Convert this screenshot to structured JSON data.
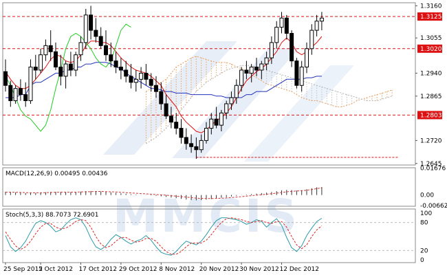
{
  "chart_data": {
    "type": "candlestick",
    "panels": [
      {
        "id": "price",
        "ylim": [
          1.264,
          1.317
        ],
        "price_labels": [
          "1.3160",
          "1.3055",
          "1.2940",
          "1.2865",
          "1.2720",
          "1.2645"
        ],
        "price_values": [
          1.316,
          1.3055,
          1.294,
          1.2865,
          1.272,
          1.2645
        ],
        "levels": [
          {
            "value": 1.3125,
            "label": "1.3125",
            "color": "#dd1111"
          },
          {
            "value": 1.302,
            "label": "1.3020",
            "color": "#dd1111"
          },
          {
            "value": 1.2803,
            "label": "1.2803",
            "color": "#dd1111"
          }
        ],
        "candles": [
          [
            1.2945,
            1.2985,
            1.288,
            1.29
          ],
          [
            1.29,
            1.2915,
            1.283,
            1.285
          ],
          [
            1.285,
            1.29,
            1.284,
            1.289
          ],
          [
            1.289,
            1.292,
            1.285,
            1.287
          ],
          [
            1.287,
            1.291,
            1.283,
            1.285
          ],
          [
            1.285,
            1.2985,
            1.284,
            1.296
          ],
          [
            1.296,
            1.3,
            1.292,
            1.295
          ],
          [
            1.295,
            1.302,
            1.294,
            1.3
          ],
          [
            1.3,
            1.305,
            1.298,
            1.303
          ],
          [
            1.303,
            1.308,
            1.298,
            1.301
          ],
          [
            1.301,
            1.304,
            1.295,
            1.296
          ],
          [
            1.296,
            1.3,
            1.29,
            1.293
          ],
          [
            1.293,
            1.298,
            1.289,
            1.297
          ],
          [
            1.297,
            1.301,
            1.293,
            1.295
          ],
          [
            1.295,
            1.301,
            1.293,
            1.3
          ],
          [
            1.3,
            1.306,
            1.298,
            1.304
          ],
          [
            1.304,
            1.315,
            1.302,
            1.313
          ],
          [
            1.313,
            1.316,
            1.305,
            1.308
          ],
          [
            1.308,
            1.312,
            1.304,
            1.306
          ],
          [
            1.306,
            1.309,
            1.302,
            1.303
          ],
          [
            1.303,
            1.308,
            1.298,
            1.3
          ],
          [
            1.3,
            1.304,
            1.296,
            1.298
          ],
          [
            1.298,
            1.301,
            1.294,
            1.296
          ],
          [
            1.296,
            1.299,
            1.292,
            1.295
          ],
          [
            1.295,
            1.298,
            1.291,
            1.293
          ],
          [
            1.293,
            1.297,
            1.289,
            1.291
          ],
          [
            1.291,
            1.295,
            1.288,
            1.292
          ],
          [
            1.292,
            1.296,
            1.289,
            1.294
          ],
          [
            1.294,
            1.297,
            1.29,
            1.292
          ],
          [
            1.292,
            1.294,
            1.288,
            1.29
          ],
          [
            1.29,
            1.293,
            1.286,
            1.288
          ],
          [
            1.288,
            1.291,
            1.282,
            1.284
          ],
          [
            1.284,
            1.287,
            1.279,
            1.28
          ],
          [
            1.28,
            1.283,
            1.276,
            1.278
          ],
          [
            1.278,
            1.281,
            1.274,
            1.276
          ],
          [
            1.276,
            1.279,
            1.271,
            1.273
          ],
          [
            1.273,
            1.276,
            1.269,
            1.271
          ],
          [
            1.271,
            1.274,
            1.268,
            1.27
          ],
          [
            1.27,
            1.273,
            1.266,
            1.269
          ],
          [
            1.269,
            1.274,
            1.268,
            1.272
          ],
          [
            1.272,
            1.278,
            1.271,
            1.276
          ],
          [
            1.276,
            1.281,
            1.274,
            1.279
          ],
          [
            1.279,
            1.283,
            1.276,
            1.277
          ],
          [
            1.277,
            1.282,
            1.275,
            1.281
          ],
          [
            1.281,
            1.285,
            1.279,
            1.284
          ],
          [
            1.284,
            1.288,
            1.282,
            1.286
          ],
          [
            1.286,
            1.292,
            1.284,
            1.29
          ],
          [
            1.29,
            1.296,
            1.288,
            1.295
          ],
          [
            1.295,
            1.298,
            1.292,
            1.294
          ],
          [
            1.294,
            1.297,
            1.291,
            1.296
          ],
          [
            1.296,
            1.299,
            1.293,
            1.295
          ],
          [
            1.295,
            1.298,
            1.292,
            1.297
          ],
          [
            1.297,
            1.301,
            1.295,
            1.299
          ],
          [
            1.299,
            1.306,
            1.297,
            1.304
          ],
          [
            1.304,
            1.311,
            1.302,
            1.309
          ],
          [
            1.309,
            1.314,
            1.307,
            1.312
          ],
          [
            1.312,
            1.313,
            1.305,
            1.307
          ],
          [
            1.307,
            1.308,
            1.296,
            1.298
          ],
          [
            1.298,
            1.299,
            1.289,
            1.29
          ],
          [
            1.29,
            1.298,
            1.288,
            1.296
          ],
          [
            1.296,
            1.304,
            1.294,
            1.302
          ],
          [
            1.302,
            1.31,
            1.3,
            1.308
          ],
          [
            1.308,
            1.313,
            1.306,
            1.311
          ],
          [
            1.311,
            1.314,
            1.308,
            1.312
          ]
        ],
        "tenkan": [
          1.2945,
          1.292,
          1.29,
          1.289,
          1.289,
          1.29,
          1.292,
          1.294,
          1.296,
          1.2985,
          1.3,
          1.2995,
          1.298,
          1.2975,
          1.298,
          1.3,
          1.303,
          1.3045,
          1.3045,
          1.304,
          1.304,
          1.303,
          1.301,
          1.299,
          1.2975,
          1.296,
          1.295,
          1.2945,
          1.294,
          1.293,
          1.2915,
          1.29,
          1.287,
          1.285,
          1.283,
          1.28,
          1.278,
          1.2765,
          1.275,
          1.2745,
          1.2755,
          1.277,
          1.2785,
          1.2795,
          1.281,
          1.283,
          1.286,
          1.289,
          1.2915,
          1.293,
          1.2945,
          1.2955,
          1.297,
          1.299,
          1.301,
          1.304,
          1.3055,
          1.304,
          1.301,
          1.3,
          1.301,
          1.3025,
          1.304,
          1.306
        ],
        "kijun": [
          1.286,
          1.286,
          1.286,
          1.287,
          1.287,
          1.29,
          1.291,
          1.291,
          1.292,
          1.293,
          1.294,
          1.294,
          1.295,
          1.295,
          1.296,
          1.296,
          1.297,
          1.297,
          1.2975,
          1.2975,
          1.2975,
          1.297,
          1.296,
          1.2955,
          1.294,
          1.293,
          1.292,
          1.291,
          1.29,
          1.289,
          1.289,
          1.2885,
          1.288,
          1.288,
          1.2875,
          1.2875,
          1.2875,
          1.287,
          1.287,
          1.287,
          1.287,
          1.287,
          1.2865,
          1.2865,
          1.286,
          1.286,
          1.286,
          1.286,
          1.287,
          1.287,
          1.288,
          1.288,
          1.288,
          1.289,
          1.29,
          1.291,
          1.292,
          1.292,
          1.292,
          1.292,
          1.2925,
          1.2925,
          1.293,
          1.293
        ],
        "chikou": [
          1.296,
          1.293,
          1.289,
          1.285,
          1.283,
          1.282,
          1.28,
          1.278,
          1.28,
          1.285,
          1.292,
          1.298,
          1.305,
          1.309,
          1.31,
          1.309,
          1.307,
          1.305,
          1.302,
          1.3,
          1.299,
          1.301,
          1.306,
          1.311,
          1.313,
          1.312
        ],
        "span_a": [
          1.288,
          1.289,
          1.29,
          1.291,
          1.292,
          1.294,
          1.296,
          1.297,
          1.298,
          1.299,
          1.2995,
          1.299,
          1.2985,
          1.298,
          1.2975,
          1.2975,
          1.2975,
          1.297,
          1.296,
          1.2955,
          1.2945,
          1.2935,
          1.2925,
          1.2915,
          1.2905,
          1.29,
          1.2895,
          1.289,
          1.2885,
          1.288,
          1.287,
          1.286,
          1.2855,
          1.285,
          1.285,
          1.2845,
          1.284,
          1.2835,
          1.283,
          1.283,
          1.2835,
          1.284,
          1.285,
          1.2855,
          1.286,
          1.2865,
          1.287,
          1.2875,
          1.288,
          1.2885
        ],
        "span_b": [
          1.271,
          1.272,
          1.273,
          1.2745,
          1.276,
          1.278,
          1.28,
          1.282,
          1.284,
          1.286,
          1.288,
          1.2895,
          1.291,
          1.292,
          1.293,
          1.294,
          1.295,
          1.2955,
          1.296,
          1.2965,
          1.2965,
          1.2965,
          1.296,
          1.2955,
          1.295,
          1.2945,
          1.294,
          1.2935,
          1.293,
          1.2925,
          1.292,
          1.2915,
          1.291,
          1.2905,
          1.29,
          1.2895,
          1.289,
          1.2885,
          1.288,
          1.2875,
          1.287,
          1.2865,
          1.286,
          1.2855,
          1.285,
          1.285,
          1.285,
          1.2855,
          1.286,
          1.2865
        ],
        "cloud_start_index": 36
      },
      {
        "id": "macd",
        "title": "MACD(12,26,9) 0.00495 0.00436",
        "ylim": [
          -0.007,
          0.017
        ],
        "axis_labels": [
          "0.01676",
          "0.00",
          "-0.00662"
        ],
        "axis_values": [
          0.01676,
          0.0,
          -0.00662
        ],
        "histogram": [
          0.002,
          0.0018,
          0.0016,
          0.0014,
          0.0012,
          0.0012,
          0.0013,
          0.0015,
          0.0017,
          0.0019,
          0.002,
          0.0019,
          0.0018,
          0.0018,
          0.0019,
          0.0021,
          0.0024,
          0.0025,
          0.0024,
          0.0022,
          0.002,
          0.0017,
          0.0014,
          0.0011,
          0.0008,
          0.0005,
          0.0003,
          0.0001,
          -0.0001,
          -0.0003,
          -0.0005,
          -0.0008,
          -0.0012,
          -0.0016,
          -0.002,
          -0.0024,
          -0.0028,
          -0.0031,
          -0.0033,
          -0.0032,
          -0.0029,
          -0.0025,
          -0.0021,
          -0.0017,
          -0.0013,
          -0.0009,
          -0.0005,
          -0.0001,
          0.0003,
          0.0006,
          0.0009,
          0.0012,
          0.0015,
          0.0019,
          0.0024,
          0.0029,
          0.0032,
          0.0031,
          0.0028,
          0.003,
          0.0036,
          0.0042,
          0.0048,
          0.005
        ],
        "signal": [
          0.0018,
          0.0018,
          0.0017,
          0.0016,
          0.0015,
          0.0014,
          0.0014,
          0.0014,
          0.0015,
          0.0016,
          0.0017,
          0.0018,
          0.0018,
          0.0018,
          0.0018,
          0.0019,
          0.002,
          0.0021,
          0.0022,
          0.0022,
          0.0021,
          0.002,
          0.0019,
          0.0017,
          0.0015,
          0.0013,
          0.0011,
          0.0009,
          0.0007,
          0.0005,
          0.0003,
          0.0001,
          -0.0001,
          -0.0004,
          -0.0007,
          -0.001,
          -0.0013,
          -0.0016,
          -0.0019,
          -0.0021,
          -0.0022,
          -0.0022,
          -0.0021,
          -0.002,
          -0.0018,
          -0.0016,
          -0.0013,
          -0.001,
          -0.0007,
          -0.0004,
          -0.0001,
          0.0002,
          0.0005,
          0.0008,
          0.0012,
          0.0016,
          0.002,
          0.0023,
          0.0025,
          0.0027,
          0.003,
          0.0034,
          0.004,
          0.0044
        ]
      },
      {
        "id": "stoch",
        "title": "Stoch(5,3,3) 88.7073 72.6901",
        "ylim": [
          0,
          100
        ],
        "axis_labels": [
          "100",
          "80",
          "20",
          "0"
        ],
        "axis_values": [
          100,
          80,
          20,
          0
        ],
        "main": [
          52,
          28,
          18,
          26,
          40,
          60,
          78,
          84,
          80,
          72,
          60,
          64,
          76,
          86,
          90,
          86,
          70,
          46,
          28,
          22,
          30,
          44,
          54,
          48,
          40,
          34,
          40,
          44,
          52,
          42,
          28,
          16,
          12,
          10,
          18,
          30,
          40,
          36,
          32,
          40,
          54,
          70,
          84,
          90,
          90,
          88,
          86,
          82,
          76,
          80,
          86,
          82,
          70,
          80,
          88,
          74,
          48,
          26,
          18,
          30,
          52,
          68,
          82,
          89
        ],
        "signal": [
          60,
          44,
          30,
          22,
          28,
          40,
          56,
          70,
          78,
          78,
          70,
          66,
          68,
          74,
          82,
          86,
          84,
          70,
          50,
          34,
          26,
          30,
          40,
          48,
          48,
          42,
          38,
          40,
          46,
          46,
          40,
          28,
          18,
          12,
          12,
          18,
          28,
          36,
          36,
          36,
          42,
          54,
          68,
          80,
          88,
          90,
          88,
          86,
          82,
          80,
          82,
          84,
          80,
          78,
          82,
          82,
          70,
          50,
          32,
          24,
          32,
          50,
          64,
          73
        ]
      }
    ],
    "x_ticks": [
      {
        "index": 0,
        "label": "25 Sep 2012"
      },
      {
        "index": 7,
        "label": "5 Oct 2012"
      },
      {
        "index": 15,
        "label": "17 Oct 2012"
      },
      {
        "index": 23,
        "label": "29 Oct 2012"
      },
      {
        "index": 31,
        "label": "8 Nov 2012"
      },
      {
        "index": 39,
        "label": "20 Nov 2012"
      },
      {
        "index": 47,
        "label": "30 Nov 2012"
      },
      {
        "index": 55,
        "label": "12 Dec 2012"
      }
    ],
    "watermark": "MMCIS",
    "colors": {
      "tenkan": "#dd1111",
      "kijun": "#2233bb",
      "chikou": "#22cc22",
      "span_a": "#e8a060",
      "span_b": "#b0b0b0",
      "level": "#dd1111",
      "macd_signal": "#cc3333",
      "stoch_main": "#2a9aa8",
      "stoch_signal": "#dd2222"
    }
  }
}
